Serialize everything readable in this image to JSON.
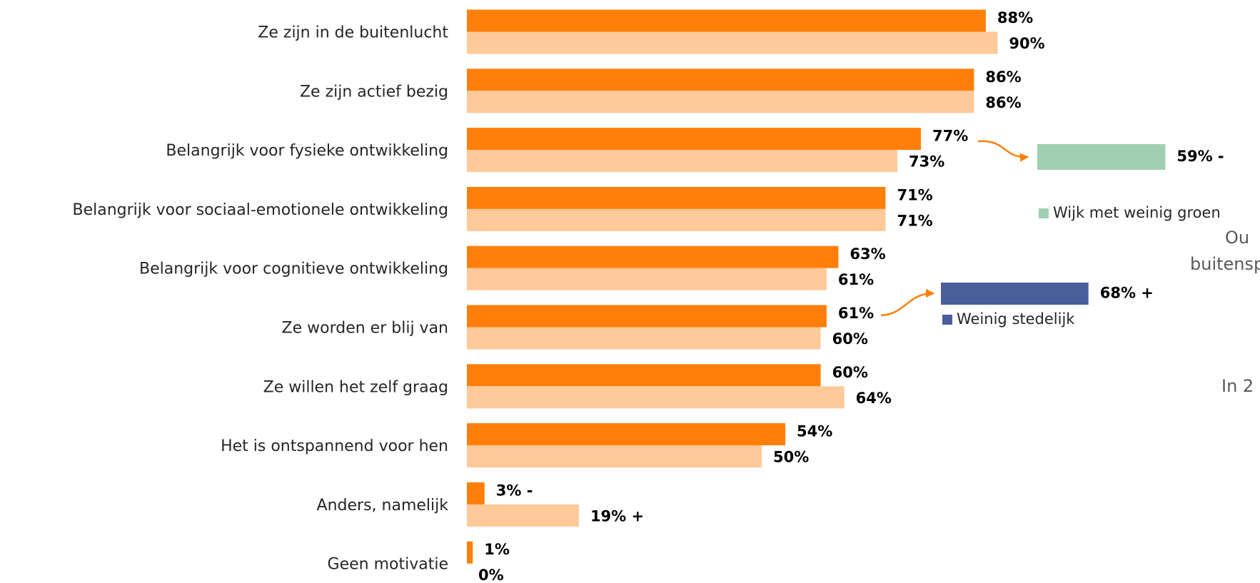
{
  "chart_data": {
    "type": "bar",
    "orientation": "horizontal",
    "categories": [
      "Ze zijn in de buitenlucht",
      "Ze zijn actief bezig",
      "Belangrijk voor fysieke ontwikkeling",
      "Belangrijk voor sociaal-emotionele ontwikkeling",
      "Belangrijk voor cognitieve ontwikkeling",
      "Ze worden er blij van",
      "Ze willen het zelf graag",
      "Het is ontspannend voor hen",
      "Anders, namelijk",
      "Geen motivatie"
    ],
    "series": [
      {
        "color": "#ff7f0a",
        "values": [
          88,
          86,
          77,
          71,
          63,
          61,
          60,
          54,
          3,
          1
        ],
        "value_labels": [
          "88%",
          "86%",
          "77%",
          "71%",
          "63%",
          "61%",
          "60%",
          "54%",
          "3% -",
          "1%"
        ]
      },
      {
        "color": "#ffc999",
        "values": [
          90,
          86,
          73,
          71,
          61,
          60,
          64,
          50,
          19,
          0
        ],
        "value_labels": [
          "90%",
          "86%",
          "73%",
          "71%",
          "61%",
          "60%",
          "64%",
          "50%",
          "19% +",
          "0%"
        ]
      }
    ],
    "xlim": [
      0,
      100
    ],
    "insets": [
      {
        "value": 59,
        "value_label": "59% -",
        "label": "Wijk met weinig groen",
        "color": "#9fcfb0"
      },
      {
        "value": 68,
        "value_label": "68% +",
        "label": "Weinig stedelijk",
        "color": "#4a5e9c"
      }
    ],
    "annotations": [
      "Ou",
      "buitensp",
      "In 2"
    ]
  }
}
